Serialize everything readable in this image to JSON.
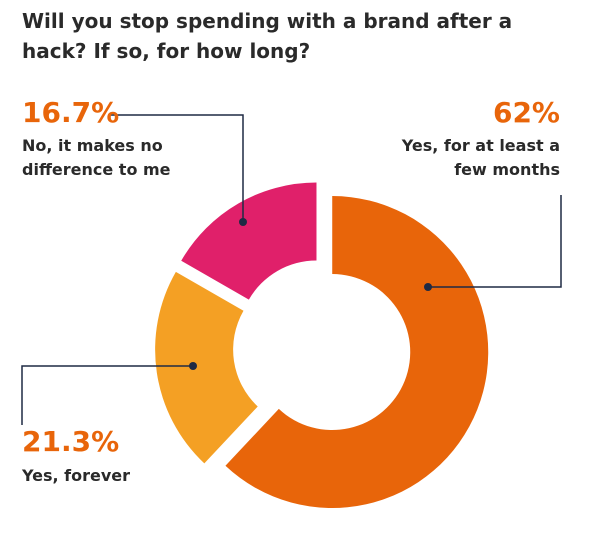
{
  "chart_data": {
    "type": "donut",
    "title": "Will you stop spending with a brand after a hack? If so, for how long?",
    "categories": [
      "Yes, for at least a few months",
      "Yes, forever",
      "No, it makes no difference to me"
    ],
    "values": [
      62,
      21.3,
      16.7
    ],
    "value_labels": [
      "62%",
      "21.3%",
      "16.7%"
    ],
    "colors": [
      "#e8650a",
      "#f4a024",
      "#e0206a"
    ]
  }
}
